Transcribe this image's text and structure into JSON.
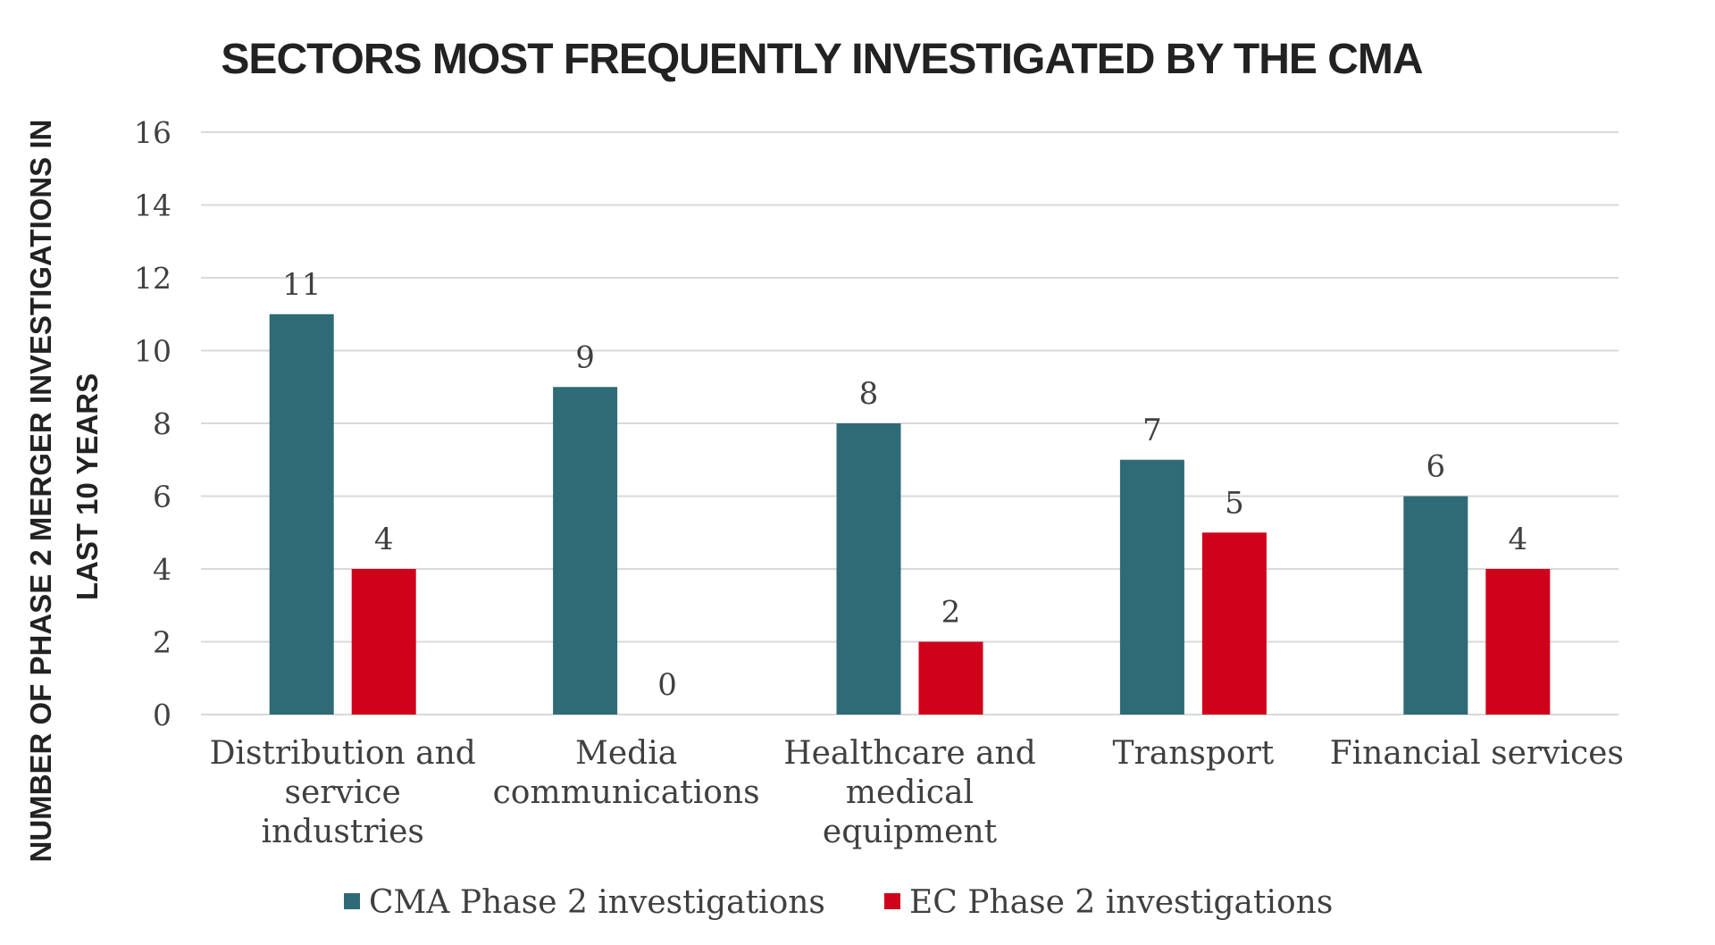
{
  "chart_data": {
    "type": "bar",
    "title": "SECTORS MOST FREQUENTLY INVESTIGATED  BY THE CMA",
    "ylabel": [
      "NUMBER OF PHASE 2 MERGER INVESTIGATIONS IN",
      "LAST 10 YEARS"
    ],
    "xlabel": "",
    "ylim": [
      0,
      16
    ],
    "yticks": [
      "0",
      "2",
      "4",
      "6",
      "8",
      "10",
      "12",
      "14",
      "16"
    ],
    "categories": [
      [
        "Distribution and",
        "service",
        "industries"
      ],
      [
        "Media",
        "communications"
      ],
      [
        "Healthcare and",
        "medical",
        "equipment"
      ],
      [
        "Transport"
      ],
      [
        "Financial services"
      ]
    ],
    "series": [
      {
        "name": "CMA Phase 2 investigations",
        "color": "#2e6b77",
        "values": [
          11,
          9,
          8,
          7,
          6
        ]
      },
      {
        "name": "EC Phase 2 investigations",
        "color": "#d0021b",
        "values": [
          4,
          0,
          2,
          5,
          4
        ]
      }
    ],
    "grid": true,
    "legend": "bottom",
    "data_labels": true
  }
}
